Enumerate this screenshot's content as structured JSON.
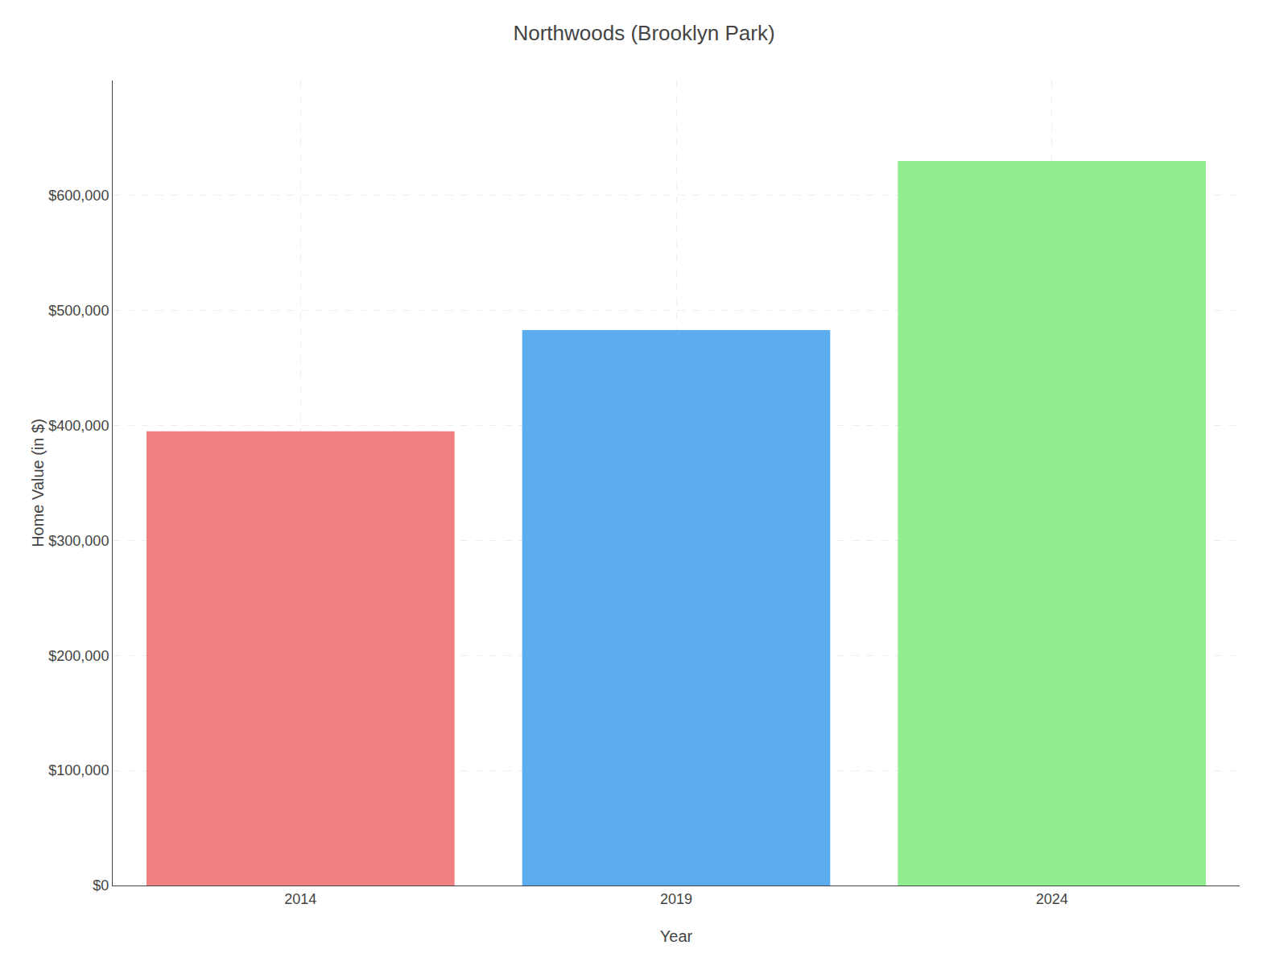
{
  "chart_data": {
    "type": "bar",
    "title": "Northwoods (Brooklyn Park)",
    "categories": [
      "2014",
      "2019",
      "2024"
    ],
    "values": [
      395000,
      483000,
      630000
    ],
    "colors": [
      "#F08080",
      "#5BADF0",
      "#90EE90"
    ],
    "xlabel": "Year",
    "ylabel": "Home Value (in $)",
    "ylim": [
      0,
      700000
    ],
    "yticks": [
      {
        "value": 0,
        "label": "$0"
      },
      {
        "value": 100000,
        "label": "$100,000"
      },
      {
        "value": 200000,
        "label": "$200,000"
      },
      {
        "value": 300000,
        "label": "$300,000"
      },
      {
        "value": 400000,
        "label": "$400,000"
      },
      {
        "value": 500000,
        "label": "$500,000"
      },
      {
        "value": 600000,
        "label": "$600,000"
      }
    ],
    "grid": true
  }
}
